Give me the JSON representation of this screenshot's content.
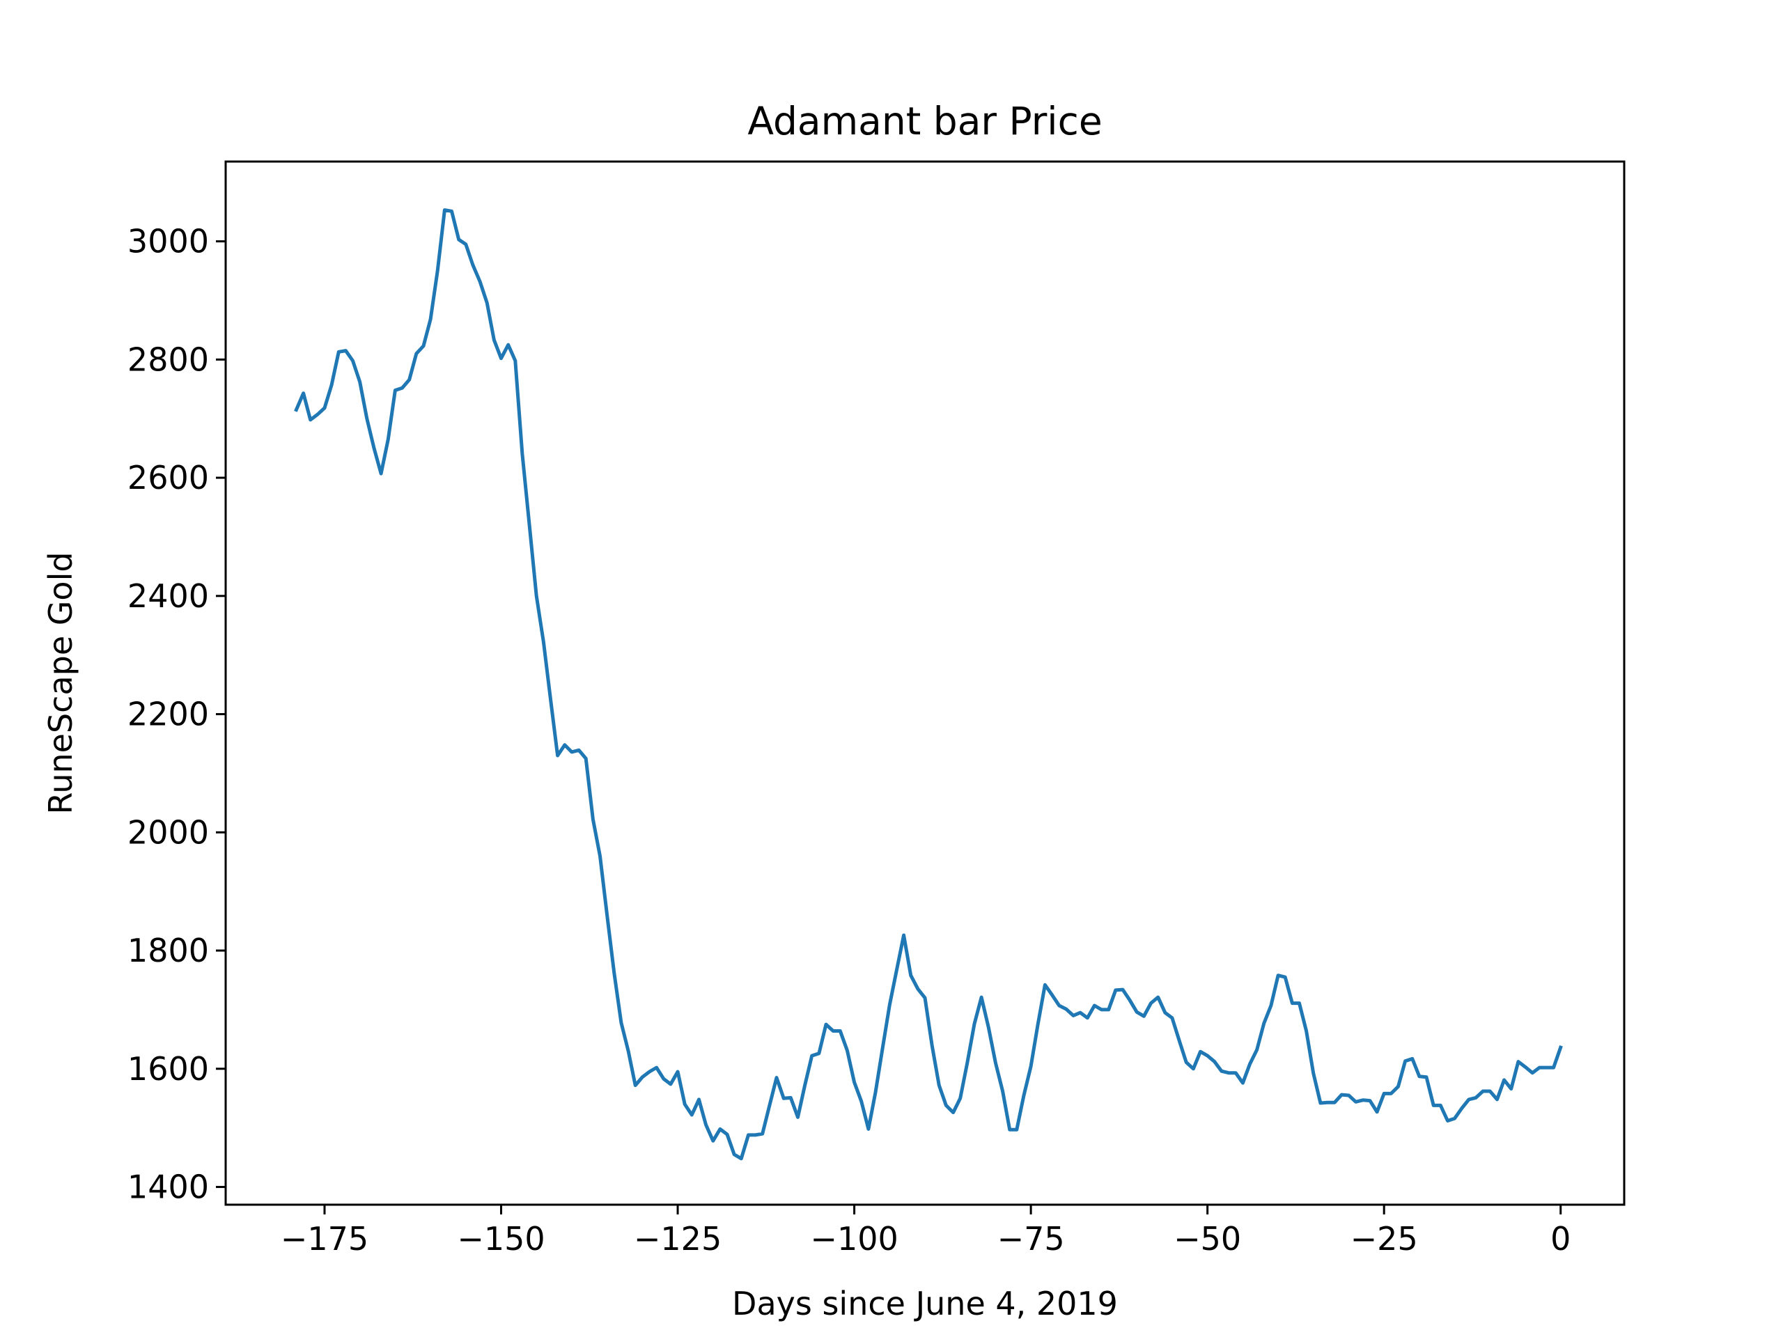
{
  "chart_data": {
    "type": "line",
    "title": "Adamant bar Price",
    "xlabel": "Days since June 4, 2019",
    "ylabel": "RuneScape Gold",
    "xlim": [
      -189,
      9
    ],
    "ylim": [
      1370,
      3135
    ],
    "xticks": [
      -175,
      -150,
      -125,
      -100,
      -75,
      -50,
      -25,
      0
    ],
    "xtick_labels": [
      "−175",
      "−150",
      "−125",
      "−100",
      "−75",
      "−50",
      "−25",
      "0"
    ],
    "yticks": [
      1400,
      1600,
      1800,
      2000,
      2200,
      2400,
      2600,
      2800,
      3000
    ],
    "ytick_labels": [
      "1400",
      "1600",
      "1800",
      "2000",
      "2200",
      "2400",
      "2600",
      "2800",
      "3000"
    ],
    "grid": false,
    "series": [
      {
        "color": "#1f77b4",
        "x": [
          -179,
          -178,
          -177,
          -176,
          -175,
          -174,
          -173,
          -172,
          -171,
          -170,
          -169,
          -168,
          -167,
          -166,
          -165,
          -164,
          -163,
          -162,
          -161,
          -160,
          -159,
          -158,
          -157,
          -156,
          -155,
          -154,
          -153,
          -152,
          -151,
          -150,
          -149,
          -148,
          -147,
          -146,
          -145,
          -144,
          -143,
          -142,
          -141,
          -140,
          -139,
          -138,
          -137,
          -136,
          -135,
          -134,
          -133,
          -132,
          -131,
          -130,
          -129,
          -128,
          -127,
          -126,
          -125,
          -124,
          -123,
          -122,
          -121,
          -120,
          -119,
          -118,
          -117,
          -116,
          -115,
          -114,
          -113,
          -112,
          -111,
          -110,
          -109,
          -108,
          -107,
          -106,
          -105,
          -104,
          -103,
          -102,
          -101,
          -100,
          -99,
          -98,
          -97,
          -96,
          -95,
          -94,
          -93,
          -92,
          -91,
          -90,
          -89,
          -88,
          -87,
          -86,
          -85,
          -84,
          -83,
          -82,
          -81,
          -80,
          -79,
          -78,
          -77,
          -76,
          -75,
          -74,
          -73,
          -72,
          -71,
          -70,
          -69,
          -68,
          -67,
          -66,
          -65,
          -64,
          -63,
          -62,
          -61,
          -60,
          -59,
          -58,
          -57,
          -56,
          -55,
          -54,
          -53,
          -52,
          -51,
          -50,
          -49,
          -48,
          -47,
          -46,
          -45,
          -44,
          -43,
          -42,
          -41,
          -40,
          -39,
          -38,
          -37,
          -36,
          -35,
          -34,
          -33,
          -32,
          -31,
          -30,
          -29,
          -28,
          -27,
          -26,
          -25,
          -24,
          -23,
          -22,
          -21,
          -20,
          -19,
          -18,
          -17,
          -16,
          -15,
          -14,
          -13,
          -12,
          -11,
          -10,
          -9,
          -8,
          -7,
          -6,
          -5,
          -4,
          -3,
          -2,
          -1,
          0
        ],
        "values": [
          2715,
          2743,
          2698,
          2707,
          2718,
          2757,
          2813,
          2815,
          2798,
          2762,
          2700,
          2650,
          2607,
          2665,
          2748,
          2752,
          2766,
          2810,
          2823,
          2868,
          2950,
          3053,
          3051,
          3003,
          2995,
          2960,
          2932,
          2896,
          2833,
          2802,
          2825,
          2798,
          2640,
          2520,
          2400,
          2322,
          2225,
          2130,
          2148,
          2136,
          2139,
          2125,
          2022,
          1960,
          1860,
          1762,
          1678,
          1630,
          1572,
          1586,
          1595,
          1602,
          1583,
          1574,
          1595,
          1540,
          1522,
          1548,
          1505,
          1478,
          1498,
          1489,
          1455,
          1448,
          1488,
          1488,
          1490,
          1538,
          1585,
          1550,
          1551,
          1518,
          1572,
          1622,
          1626,
          1675,
          1664,
          1664,
          1631,
          1577,
          1545,
          1498,
          1560,
          1635,
          1708,
          1767,
          1826,
          1758,
          1735,
          1720,
          1640,
          1572,
          1538,
          1526,
          1550,
          1610,
          1676,
          1721,
          1670,
          1610,
          1562,
          1497,
          1497,
          1555,
          1604,
          1676,
          1742,
          1725,
          1707,
          1701,
          1690,
          1695,
          1686,
          1707,
          1700,
          1700,
          1733,
          1734,
          1716,
          1696,
          1689,
          1711,
          1721,
          1695,
          1686,
          1648,
          1611,
          1600,
          1629,
          1622,
          1612,
          1596,
          1593,
          1593,
          1576,
          1608,
          1632,
          1677,
          1707,
          1758,
          1755,
          1711,
          1711,
          1664,
          1592,
          1542,
          1543,
          1543,
          1556,
          1555,
          1544,
          1547,
          1546,
          1527,
          1558,
          1558,
          1570,
          1613,
          1617,
          1587,
          1586,
          1538,
          1538,
          1512,
          1516,
          1533,
          1548,
          1551,
          1562,
          1562,
          1548,
          1581,
          1566,
          1612,
          1603,
          1593,
          1602,
          1602,
          1602,
          1636
        ]
      }
    ]
  }
}
